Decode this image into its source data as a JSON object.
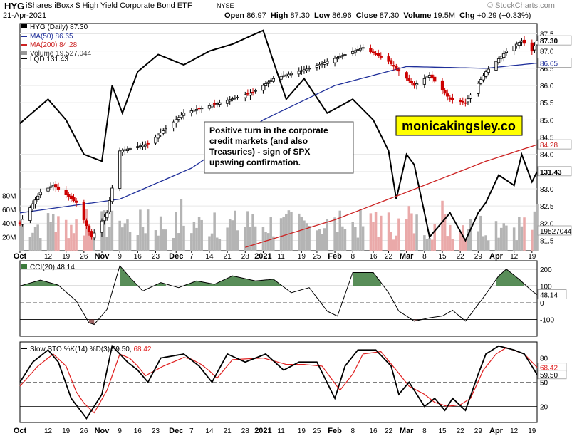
{
  "header": {
    "ticker": "HYG",
    "name": "iShares iBoxx $ High Yield Corporate Bond ETF",
    "exchange": "NYSE",
    "watermark": "© StockCharts.com",
    "date": "21-Apr-2021",
    "open_label": "Open",
    "open": "86.97",
    "high_label": "High",
    "high": "87.30",
    "low_label": "Low",
    "low": "86.96",
    "close_label": "Close",
    "close": "87.30",
    "volume_label": "Volume",
    "volume": "19.5M",
    "chg_label": "Chg",
    "chg": "+0.29 (+0.33%)"
  },
  "legend": {
    "hyg": "HYG (Daily) 87.30",
    "ma50": "MA(50) 86.65",
    "ma200": "MA(200) 84.28",
    "volume": "Volume 19,527,044",
    "lqd": "LQD 131.43"
  },
  "annotation": "Positive turn in the corporate credit markets (and also Treasuries) - sign of SPX upswing confirmation.",
  "brand": "monicakingsley.co",
  "colors": {
    "up": "#000000",
    "down": "#cc0000",
    "ma50": "#1f2f9a",
    "ma200": "#cc2222",
    "lqd": "#000000",
    "vol_up": "#b4b4b4",
    "vol_down": "#eaa9a9",
    "cci_fill": "#3c7a3c",
    "cci_neg_fill": "#8c4a4a",
    "k_line": "#000000",
    "d_line": "#e02020",
    "brand_bg": "#ffff00"
  },
  "chart_data": [
    {
      "type": "candlestick",
      "title": "HYG (Daily) 87.30",
      "y_ticks": [
        "81.5",
        "82.0",
        "82.5",
        "83.0",
        "83.5",
        "84.0",
        "84.5",
        "85.0",
        "85.5",
        "86.0",
        "86.5",
        "87.0",
        "87.5"
      ],
      "ylim": [
        81.2,
        87.8
      ],
      "x_ticks": [
        "Oct",
        "12",
        "19",
        "26",
        "Nov",
        "9",
        "16",
        "23",
        "Dec",
        "7",
        "14",
        "21",
        "28",
        "2021",
        "11",
        "19",
        "25",
        "Feb",
        "8",
        "16",
        "22",
        "Mar",
        "8",
        "15",
        "22",
        "29",
        "Apr",
        "12",
        "19"
      ],
      "x_range": [
        "2020-10-01",
        "2021-04-21"
      ],
      "price_anchors": [
        [
          "2020-10-01",
          82.0
        ],
        [
          "2020-10-09",
          82.9
        ],
        [
          "2020-10-14",
          83.1
        ],
        [
          "2020-10-23",
          82.6
        ],
        [
          "2020-10-29",
          81.6
        ],
        [
          "2020-11-04",
          82.3
        ],
        [
          "2020-11-09",
          84.1
        ],
        [
          "2020-11-20",
          84.3
        ],
        [
          "2020-12-04",
          85.2
        ],
        [
          "2020-12-18",
          85.5
        ],
        [
          "2020-12-31",
          85.8
        ],
        [
          "2021-01-08",
          86.2
        ],
        [
          "2021-01-22",
          86.5
        ],
        [
          "2021-02-05",
          86.9
        ],
        [
          "2021-02-12",
          87.1
        ],
        [
          "2021-02-22",
          86.7
        ],
        [
          "2021-03-04",
          86.0
        ],
        [
          "2021-03-10",
          86.3
        ],
        [
          "2021-03-18",
          85.6
        ],
        [
          "2021-03-24",
          85.5
        ],
        [
          "2021-04-01",
          86.4
        ],
        [
          "2021-04-09",
          87.0
        ],
        [
          "2021-04-15",
          87.3
        ],
        [
          "2021-04-19",
          87.0
        ],
        [
          "2021-04-21",
          87.3
        ]
      ],
      "ma50": {
        "name": "MA(50) 86.65",
        "anchors": [
          [
            "2020-10-01",
            82.3
          ],
          [
            "2020-11-09",
            82.7
          ],
          [
            "2020-12-07",
            83.6
          ],
          [
            "2021-01-04",
            85.0
          ],
          [
            "2021-02-01",
            86.0
          ],
          [
            "2021-03-01",
            86.55
          ],
          [
            "2021-04-01",
            86.5
          ],
          [
            "2021-04-21",
            86.65
          ]
        ]
      },
      "ma200": {
        "name": "MA(200) 84.28",
        "anchors": [
          [
            "2020-12-28",
            81.3
          ],
          [
            "2021-02-01",
            82.1
          ],
          [
            "2021-03-01",
            82.9
          ],
          [
            "2021-04-01",
            83.8
          ],
          [
            "2021-04-21",
            84.28
          ]
        ]
      },
      "lqd": {
        "name": "LQD 131.43",
        "anchors": [
          [
            "2020-10-01",
            84.9
          ],
          [
            "2020-10-12",
            85.6
          ],
          [
            "2020-10-19",
            85.0
          ],
          [
            "2020-10-26",
            84.0
          ],
          [
            "2020-11-02",
            83.8
          ],
          [
            "2020-11-06",
            86.0
          ],
          [
            "2020-11-10",
            85.2
          ],
          [
            "2020-11-16",
            86.4
          ],
          [
            "2020-11-24",
            86.9
          ],
          [
            "2020-12-04",
            86.6
          ],
          [
            "2020-12-14",
            87.0
          ],
          [
            "2020-12-23",
            87.2
          ],
          [
            "2021-01-04",
            87.6
          ],
          [
            "2021-01-08",
            86.7
          ],
          [
            "2021-01-13",
            85.6
          ],
          [
            "2021-01-20",
            86.2
          ],
          [
            "2021-01-29",
            85.2
          ],
          [
            "2021-02-08",
            85.6
          ],
          [
            "2021-02-16",
            85.0
          ],
          [
            "2021-02-22",
            84.1
          ],
          [
            "2021-02-25",
            82.7
          ],
          [
            "2021-03-01",
            84.0
          ],
          [
            "2021-03-04",
            83.7
          ],
          [
            "2021-03-10",
            81.6
          ],
          [
            "2021-03-18",
            82.3
          ],
          [
            "2021-03-24",
            81.5
          ],
          [
            "2021-03-29",
            82.3
          ],
          [
            "2021-04-01",
            82.6
          ],
          [
            "2021-04-06",
            83.4
          ],
          [
            "2021-04-12",
            83.1
          ],
          [
            "2021-04-15",
            84.0
          ],
          [
            "2021-04-19",
            83.2
          ],
          [
            "2021-04-21",
            83.5
          ]
        ]
      },
      "right_labels": [
        "87.30",
        "86.65",
        "84.28",
        "131.43",
        "19527044"
      ],
      "volume_ticks": [
        "20M",
        "40M",
        "60M",
        "80M"
      ],
      "volume_scale_max": 100
    },
    {
      "type": "line",
      "title": "CCI(20) 48.14",
      "y_ticks": [
        "-100",
        "0",
        "100",
        "200"
      ],
      "ylim": [
        -200,
        250
      ],
      "anchors": [
        [
          "2020-10-01",
          100
        ],
        [
          "2020-10-09",
          135
        ],
        [
          "2020-10-16",
          105
        ],
        [
          "2020-10-23",
          10
        ],
        [
          "2020-10-28",
          -120
        ],
        [
          "2020-10-30",
          -130
        ],
        [
          "2020-11-04",
          -40
        ],
        [
          "2020-11-09",
          220
        ],
        [
          "2020-11-13",
          150
        ],
        [
          "2020-11-18",
          70
        ],
        [
          "2020-11-25",
          120
        ],
        [
          "2020-12-02",
          90
        ],
        [
          "2020-12-09",
          130
        ],
        [
          "2020-12-16",
          110
        ],
        [
          "2020-12-23",
          160
        ],
        [
          "2021-01-01",
          130
        ],
        [
          "2021-01-08",
          140
        ],
        [
          "2021-01-15",
          60
        ],
        [
          "2021-01-22",
          90
        ],
        [
          "2021-01-29",
          -50
        ],
        [
          "2021-02-02",
          -80
        ],
        [
          "2021-02-08",
          180
        ],
        [
          "2021-02-16",
          180
        ],
        [
          "2021-02-22",
          60
        ],
        [
          "2021-02-26",
          -50
        ],
        [
          "2021-03-04",
          -110
        ],
        [
          "2021-03-10",
          -90
        ],
        [
          "2021-03-15",
          -80
        ],
        [
          "2021-03-19",
          -45
        ],
        [
          "2021-03-24",
          -110
        ],
        [
          "2021-03-31",
          30
        ],
        [
          "2021-04-06",
          160
        ],
        [
          "2021-04-09",
          200
        ],
        [
          "2021-04-14",
          140
        ],
        [
          "2021-04-19",
          70
        ],
        [
          "2021-04-21",
          48
        ]
      ],
      "right_label": "48.14"
    },
    {
      "type": "line",
      "title": "Slow STO %K(14) %D(3) 59.50, 68.42",
      "y_ticks": [
        "20",
        "50",
        "80"
      ],
      "ylim": [
        0,
        100
      ],
      "k_anchors": [
        [
          "2020-10-01",
          50
        ],
        [
          "2020-10-06",
          75
        ],
        [
          "2020-10-12",
          90
        ],
        [
          "2020-10-16",
          75
        ],
        [
          "2020-10-21",
          30
        ],
        [
          "2020-10-27",
          5
        ],
        [
          "2020-11-02",
          35
        ],
        [
          "2020-11-06",
          95
        ],
        [
          "2020-11-12",
          75
        ],
        [
          "2020-11-16",
          65
        ],
        [
          "2020-11-20",
          50
        ],
        [
          "2020-11-25",
          80
        ],
        [
          "2020-12-04",
          85
        ],
        [
          "2020-12-10",
          70
        ],
        [
          "2020-12-15",
          50
        ],
        [
          "2020-12-21",
          85
        ],
        [
          "2020-12-28",
          75
        ],
        [
          "2021-01-05",
          85
        ],
        [
          "2021-01-12",
          65
        ],
        [
          "2021-01-18",
          75
        ],
        [
          "2021-01-25",
          75
        ],
        [
          "2021-02-01",
          30
        ],
        [
          "2021-02-05",
          70
        ],
        [
          "2021-02-10",
          90
        ],
        [
          "2021-02-17",
          90
        ],
        [
          "2021-02-23",
          70
        ],
        [
          "2021-02-26",
          35
        ],
        [
          "2021-03-02",
          50
        ],
        [
          "2021-03-08",
          20
        ],
        [
          "2021-03-12",
          30
        ],
        [
          "2021-03-16",
          15
        ],
        [
          "2021-03-19",
          30
        ],
        [
          "2021-03-24",
          15
        ],
        [
          "2021-03-29",
          60
        ],
        [
          "2021-04-01",
          85
        ],
        [
          "2021-04-06",
          95
        ],
        [
          "2021-04-12",
          90
        ],
        [
          "2021-04-16",
          85
        ],
        [
          "2021-04-21",
          59.5
        ]
      ],
      "d_anchors": [
        [
          "2020-10-01",
          45
        ],
        [
          "2020-10-08",
          70
        ],
        [
          "2020-10-14",
          85
        ],
        [
          "2020-10-19",
          70
        ],
        [
          "2020-10-24",
          30
        ],
        [
          "2020-10-30",
          12
        ],
        [
          "2020-11-04",
          40
        ],
        [
          "2020-11-09",
          85
        ],
        [
          "2020-11-14",
          78
        ],
        [
          "2020-11-19",
          58
        ],
        [
          "2020-11-26",
          70
        ],
        [
          "2020-12-05",
          82
        ],
        [
          "2020-12-12",
          70
        ],
        [
          "2020-12-17",
          55
        ],
        [
          "2020-12-23",
          78
        ],
        [
          "2021-01-04",
          80
        ],
        [
          "2021-01-13",
          72
        ],
        [
          "2021-01-20",
          72
        ],
        [
          "2021-01-27",
          70
        ],
        [
          "2021-02-03",
          40
        ],
        [
          "2021-02-08",
          60
        ],
        [
          "2021-02-12",
          85
        ],
        [
          "2021-02-19",
          88
        ],
        [
          "2021-02-25",
          65
        ],
        [
          "2021-03-02",
          45
        ],
        [
          "2021-03-08",
          35
        ],
        [
          "2021-03-12",
          25
        ],
        [
          "2021-03-17",
          20
        ],
        [
          "2021-03-22",
          22
        ],
        [
          "2021-03-26",
          30
        ],
        [
          "2021-03-31",
          65
        ],
        [
          "2021-04-05",
          85
        ],
        [
          "2021-04-09",
          93
        ],
        [
          "2021-04-16",
          85
        ],
        [
          "2021-04-21",
          68.42
        ]
      ],
      "right_labels": [
        "68.42",
        "59.50"
      ]
    }
  ]
}
